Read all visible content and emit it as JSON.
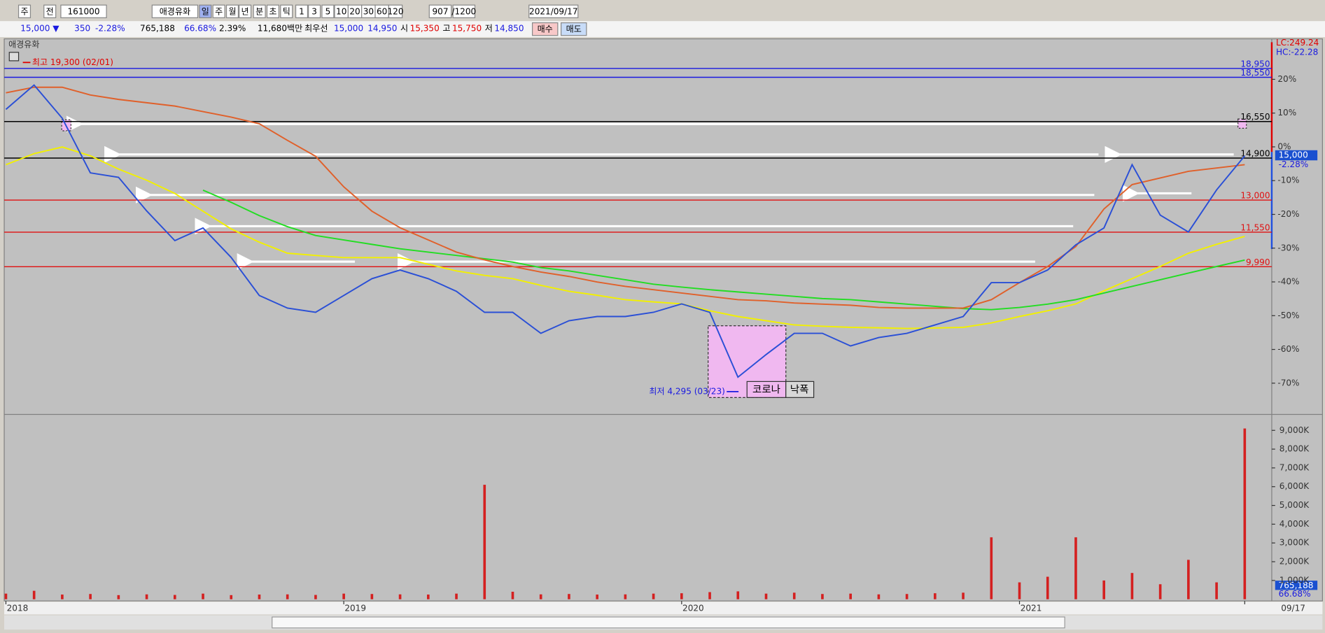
{
  "toolbar": {
    "items": [
      "주",
      "전",
      "161000",
      "애경유화",
      "일",
      "주",
      "월",
      "년",
      "분",
      "초",
      "틱",
      "1",
      "3",
      "5",
      "10",
      "20",
      "30",
      "60",
      "120",
      "907",
      "/1200",
      "2021/09/17"
    ]
  },
  "quote": {
    "items": [
      "15,000 ▼",
      "350",
      "-2.28%",
      "765,188",
      "66.68%",
      "2.39%",
      "11,680백만",
      "최우선",
      "15,000",
      "14,950",
      "시",
      "15,350",
      "고",
      "15,750",
      "저",
      "14,850"
    ],
    "buttons": [
      "매수",
      "매도"
    ]
  },
  "chart_data": {
    "type": "line",
    "title": "애경유화",
    "categories": [
      "2018",
      null,
      null,
      null,
      null,
      null,
      null,
      null,
      null,
      null,
      null,
      null,
      "2019",
      null,
      null,
      null,
      null,
      null,
      null,
      null,
      null,
      null,
      null,
      null,
      "2020",
      null,
      null,
      null,
      null,
      null,
      null,
      null,
      null,
      null,
      null,
      null,
      "2021",
      null,
      null,
      null,
      null,
      null,
      null,
      null,
      "09/17"
    ],
    "series": [
      {
        "color": "#f2f000",
        "values": [
          14600,
          15100,
          15400,
          15000,
          14400,
          13900,
          13300,
          12500,
          11700,
          11100,
          10600,
          10500,
          10400,
          10400,
          10400,
          10100,
          9800,
          9600,
          9450,
          9150,
          8880,
          8700,
          8500,
          8400,
          8310,
          8000,
          7740,
          7550,
          7360,
          7300,
          7250,
          7230,
          7200,
          7220,
          7250,
          7450,
          7740,
          8000,
          8310,
          8900,
          9450,
          10000,
          10600,
          11000,
          11360
        ]
      },
      {
        "color": "#22dd22",
        "values": [
          null,
          null,
          null,
          null,
          null,
          null,
          null,
          13450,
          12900,
          12300,
          11800,
          11400,
          11200,
          11000,
          10800,
          10650,
          10500,
          10350,
          10200,
          9950,
          9800,
          9600,
          9400,
          9200,
          9070,
          8950,
          8850,
          8750,
          8650,
          8550,
          8500,
          8400,
          8300,
          8200,
          8100,
          8050,
          8150,
          8300,
          8500,
          8800,
          9100,
          9400,
          9700,
          10000,
          10290
        ]
      },
      {
        "color": "#e0602a",
        "values": [
          17850,
          18100,
          18100,
          17750,
          17550,
          17400,
          17250,
          17000,
          16750,
          16450,
          15700,
          14980,
          13600,
          12500,
          11750,
          11200,
          10650,
          10300,
          10000,
          9750,
          9550,
          9300,
          9100,
          8950,
          8800,
          8650,
          8500,
          8450,
          8350,
          8300,
          8250,
          8150,
          8120,
          8120,
          8120,
          8500,
          9270,
          10000,
          10900,
          12600,
          13700,
          14000,
          14300,
          14450,
          14600
        ]
      },
      {
        "color": "#2a4fd6",
        "values": [
          17100,
          18200,
          16700,
          14230,
          14030,
          12510,
          11170,
          11740,
          10410,
          8690,
          8120,
          7930,
          8690,
          9450,
          9840,
          9450,
          8880,
          7930,
          7930,
          6980,
          7550,
          7740,
          7740,
          7930,
          8310,
          7930,
          5000,
          6020,
          6980,
          6980,
          6410,
          6790,
          6980,
          7360,
          7740,
          9270,
          9270,
          9840,
          10980,
          11740,
          14600,
          12320,
          11560,
          13460,
          15000
        ]
      }
    ],
    "ylim": [
      3354,
      20288
    ],
    "y2lim": [
      -79,
      32
    ],
    "y2ticks": [
      {
        "value": 20,
        "label": "20%"
      },
      {
        "value": 10,
        "label": "10%"
      },
      {
        "value": 0,
        "label": "0%"
      },
      {
        "value": -10,
        "label": "-10%"
      },
      {
        "value": -20,
        "label": "-20%"
      },
      {
        "value": -30,
        "label": "-30%"
      },
      {
        "value": -40,
        "label": "-40%"
      },
      {
        "value": -50,
        "label": "-50%"
      },
      {
        "value": -60,
        "label": "-60%"
      },
      {
        "value": -70,
        "label": "-70%"
      }
    ],
    "levels": [
      {
        "value": 18950,
        "label": "18,950",
        "color": "#1a1ae0"
      },
      {
        "value": 18550,
        "label": "18,550",
        "color": "#1a1ae0"
      },
      {
        "value": 16550,
        "label": "16,550",
        "color": "#000000"
      },
      {
        "value": 14900,
        "label": "14,900",
        "color": "#000000"
      },
      {
        "value": 13000,
        "label": "13,000",
        "color": "#e01010"
      },
      {
        "value": 11550,
        "label": "11,550",
        "color": "#e01010"
      },
      {
        "value": 9990,
        "label": "9,990",
        "color": "#e01010"
      }
    ],
    "volume": {
      "color": "#d42020",
      "values": [
        300,
        450,
        250,
        280,
        220,
        260,
        230,
        300,
        220,
        250,
        260,
        230,
        300,
        280,
        260,
        250,
        300,
        6100,
        400,
        260,
        280,
        250,
        260,
        300,
        320,
        380,
        420,
        300,
        350,
        280,
        300,
        260,
        280,
        320,
        350,
        3300,
        900,
        1200,
        3300,
        1000,
        1400,
        800,
        2100,
        900,
        9100
      ],
      "ylim": [
        0,
        9760
      ],
      "yticks": [
        {
          "value": 1000,
          "label": "1,000K"
        },
        {
          "value": 2000,
          "label": "2,000K"
        },
        {
          "value": 3000,
          "label": "3,000K"
        },
        {
          "value": 4000,
          "label": "4,000K"
        },
        {
          "value": 5000,
          "label": "5,000K"
        },
        {
          "value": 6000,
          "label": "6,000K"
        },
        {
          "value": 7000,
          "label": "7,000K"
        },
        {
          "value": 8000,
          "label": "8,000K"
        },
        {
          "value": 9000,
          "label": "9,000K"
        }
      ]
    },
    "annotations": {
      "high": "최고 19,300 (02/01)",
      "low": "최저 4,295 (03/23)",
      "tag1": "코로나",
      "tag2": "낙폭"
    },
    "lc": "LC:249.24",
    "hc": "HC:-22.28",
    "current": {
      "price": "15,000",
      "change": "-2.28%"
    },
    "volume_current": {
      "value": "765,188",
      "ratio": "66.68%"
    }
  }
}
